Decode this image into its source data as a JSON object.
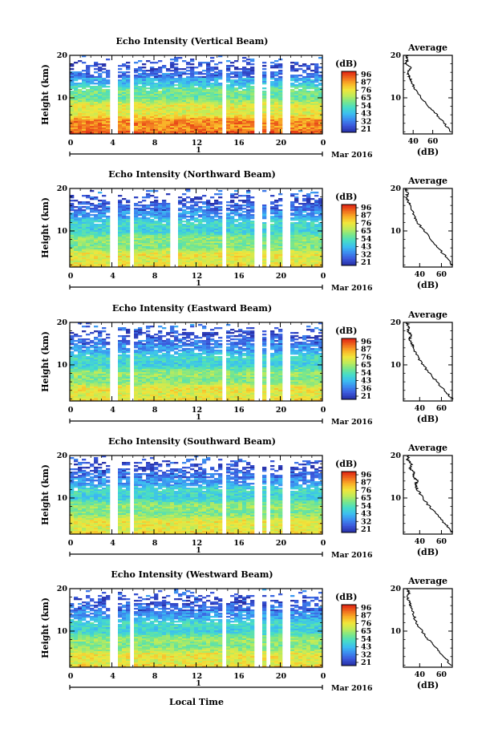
{
  "figure": {
    "xlabel": "Local Time",
    "month_label": "Mar 2016",
    "day_label": "1",
    "x_ticks": [
      "0",
      "4",
      "8",
      "12",
      "16",
      "20",
      "0"
    ],
    "y_label": "Height (km)",
    "y_ticks": [
      "20",
      "10"
    ],
    "colorbar_unit": "(dB)",
    "avg_title": "Average",
    "avg_xlabel": "(dB)",
    "avg_y_ticks": [
      "20",
      "10"
    ]
  },
  "chart_data": [
    {
      "type": "heatmap",
      "title": "Echo Intensity (Vertical Beam)",
      "x_range_hours": [
        0,
        24
      ],
      "ylim_km": [
        1.5,
        20
      ],
      "colorbar_ticks": [
        "96",
        "87",
        "76",
        "65",
        "54",
        "43",
        "32",
        "21"
      ],
      "gap_hours": [
        4.2,
        5.9,
        14.7,
        17.9,
        19.0,
        20.6
      ],
      "profile": {
        "xlim": [
          30,
          80
        ],
        "x_ticks": [
          "40",
          "60"
        ],
        "height_km": [
          2,
          4,
          6,
          8,
          10,
          12,
          14,
          15,
          16,
          17,
          18,
          19,
          20
        ],
        "value_db": [
          78,
          72,
          64,
          56,
          48,
          42,
          38,
          36,
          34,
          38,
          33,
          34,
          33
        ]
      }
    },
    {
      "type": "heatmap",
      "title": "Echo Intensity (Northward Beam)",
      "x_range_hours": [
        0,
        24
      ],
      "ylim_km": [
        1.5,
        20
      ],
      "colorbar_ticks": [
        "96",
        "87",
        "76",
        "65",
        "54",
        "43",
        "32",
        "21"
      ],
      "gap_hours": [
        4.2,
        5.9,
        9.9,
        14.7,
        17.9,
        19.0,
        20.6
      ],
      "profile": {
        "xlim": [
          25,
          70
        ],
        "x_ticks": [
          "40",
          "60"
        ],
        "height_km": [
          2,
          4,
          6,
          8,
          10,
          12,
          14,
          16,
          17,
          18,
          19,
          20
        ],
        "value_db": [
          70,
          64,
          57,
          50,
          44,
          38,
          34,
          31,
          29,
          28,
          29,
          27
        ]
      }
    },
    {
      "type": "heatmap",
      "title": "Echo Intensity (Eastward Beam)",
      "x_range_hours": [
        0,
        24
      ],
      "ylim_km": [
        1.5,
        20
      ],
      "colorbar_ticks": [
        "96",
        "87",
        "76",
        "65",
        "54",
        "43",
        "36",
        "21"
      ],
      "gap_hours": [
        4.2,
        5.9,
        14.7,
        17.9,
        19.0,
        20.6
      ],
      "profile": {
        "xlim": [
          25,
          70
        ],
        "x_ticks": [
          "40",
          "60"
        ],
        "height_km": [
          2,
          4,
          6,
          8,
          10,
          12,
          14,
          15,
          16,
          17,
          18,
          19,
          20
        ],
        "value_db": [
          70,
          63,
          56,
          49,
          43,
          38,
          34,
          33,
          31,
          32,
          29,
          30,
          28
        ]
      }
    },
    {
      "type": "heatmap",
      "title": "Echo Intensity (Southward Beam)",
      "x_range_hours": [
        0,
        24
      ],
      "ylim_km": [
        1.5,
        20
      ],
      "colorbar_ticks": [
        "96",
        "87",
        "76",
        "65",
        "54",
        "43",
        "32",
        "21"
      ],
      "gap_hours": [
        4.2,
        5.9,
        14.7,
        17.9,
        19.0,
        20.6
      ],
      "profile": {
        "xlim": [
          25,
          70
        ],
        "x_ticks": [
          "40",
          "60"
        ],
        "height_km": [
          2,
          4,
          6,
          8,
          10,
          12,
          13,
          14,
          15,
          16,
          17,
          18,
          19,
          20
        ],
        "value_db": [
          70,
          63,
          56,
          49,
          43,
          38,
          36,
          38,
          34,
          35,
          31,
          33,
          29,
          30
        ]
      }
    },
    {
      "type": "heatmap",
      "title": "Echo Intensity (Westward Beam)",
      "x_range_hours": [
        0,
        24
      ],
      "ylim_km": [
        1.5,
        20
      ],
      "colorbar_ticks": [
        "96",
        "87",
        "76",
        "65",
        "54",
        "43",
        "32",
        "21"
      ],
      "gap_hours": [
        4.2,
        5.9,
        14.7,
        17.9,
        19.0,
        20.6
      ],
      "profile": {
        "xlim": [
          25,
          70
        ],
        "x_ticks": [
          "40",
          "60"
        ],
        "height_km": [
          2,
          4,
          6,
          8,
          10,
          12,
          14,
          16,
          17,
          18,
          19,
          20
        ],
        "value_db": [
          69,
          62,
          55,
          48,
          42,
          37,
          34,
          32,
          30,
          29,
          30,
          28
        ]
      }
    }
  ]
}
